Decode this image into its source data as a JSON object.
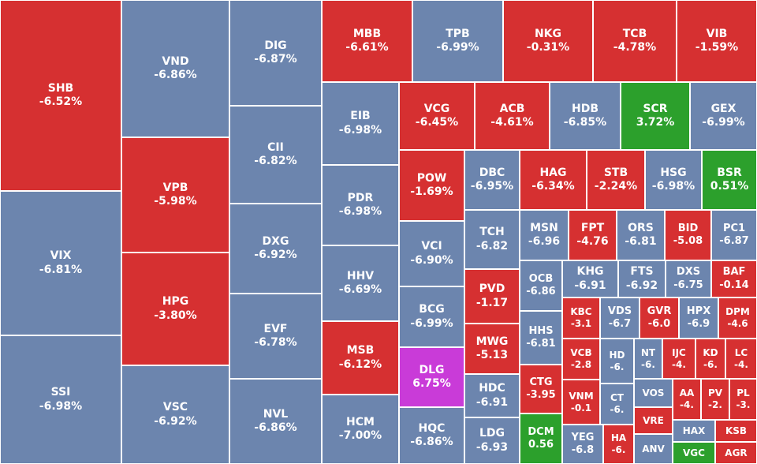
{
  "chart_data": {
    "type": "treemap",
    "colors": {
      "down": "#d63031",
      "floor": "#6c85ae",
      "up": "#2ca02c",
      "ceiling": "#c93bd8"
    },
    "items": [
      {
        "ticker": "SHB",
        "change": "-6.52%",
        "status": "down"
      },
      {
        "ticker": "VIX",
        "change": "-6.81%",
        "status": "floor"
      },
      {
        "ticker": "SSI",
        "change": "-6.98%",
        "status": "floor"
      },
      {
        "ticker": "VND",
        "change": "-6.86%",
        "status": "floor"
      },
      {
        "ticker": "VPB",
        "change": "-5.98%",
        "status": "down"
      },
      {
        "ticker": "HPG",
        "change": "-3.80%",
        "status": "down"
      },
      {
        "ticker": "VSC",
        "change": "-6.92%",
        "status": "floor"
      },
      {
        "ticker": "DIG",
        "change": "-6.87%",
        "status": "floor"
      },
      {
        "ticker": "CII",
        "change": "-6.82%",
        "status": "floor"
      },
      {
        "ticker": "DXG",
        "change": "-6.92%",
        "status": "floor"
      },
      {
        "ticker": "EVF",
        "change": "-6.78%",
        "status": "floor"
      },
      {
        "ticker": "NVL",
        "change": "-6.86%",
        "status": "floor"
      },
      {
        "ticker": "MBB",
        "change": "-6.61%",
        "status": "down"
      },
      {
        "ticker": "TPB",
        "change": "-6.99%",
        "status": "floor"
      },
      {
        "ticker": "NKG",
        "change": "-0.31%",
        "status": "down"
      },
      {
        "ticker": "TCB",
        "change": "-4.78%",
        "status": "down"
      },
      {
        "ticker": "VIB",
        "change": "-1.59%",
        "status": "down"
      },
      {
        "ticker": "EIB",
        "change": "-6.98%",
        "status": "floor"
      },
      {
        "ticker": "PDR",
        "change": "-6.98%",
        "status": "floor"
      },
      {
        "ticker": "HHV",
        "change": "-6.69%",
        "status": "floor"
      },
      {
        "ticker": "MSB",
        "change": "-6.12%",
        "status": "down"
      },
      {
        "ticker": "HCM",
        "change": "-7.00%",
        "status": "floor"
      },
      {
        "ticker": "VCG",
        "change": "-6.45%",
        "status": "down"
      },
      {
        "ticker": "ACB",
        "change": "-4.61%",
        "status": "down"
      },
      {
        "ticker": "HDB",
        "change": "-6.85%",
        "status": "floor"
      },
      {
        "ticker": "SCR",
        "change": "3.72%",
        "status": "up"
      },
      {
        "ticker": "GEX",
        "change": "-6.99%",
        "status": "floor"
      },
      {
        "ticker": "POW",
        "change": "-1.69%",
        "status": "down"
      },
      {
        "ticker": "DBC",
        "change": "-6.95%",
        "status": "floor"
      },
      {
        "ticker": "HAG",
        "change": "-6.34%",
        "status": "down"
      },
      {
        "ticker": "STB",
        "change": "-2.24%",
        "status": "down"
      },
      {
        "ticker": "HSG",
        "change": "-6.98%",
        "status": "floor"
      },
      {
        "ticker": "BSR",
        "change": "0.51%",
        "status": "up"
      },
      {
        "ticker": "VCI",
        "change": "-6.90%",
        "status": "floor"
      },
      {
        "ticker": "BCG",
        "change": "-6.99%",
        "status": "floor"
      },
      {
        "ticker": "DLG",
        "change": "6.75%",
        "status": "ceiling"
      },
      {
        "ticker": "HQC",
        "change": "-6.86%",
        "status": "floor"
      },
      {
        "ticker": "TCH",
        "change": "-6.82",
        "status": "floor"
      },
      {
        "ticker": "PVD",
        "change": "-1.17",
        "status": "down"
      },
      {
        "ticker": "MWG",
        "change": "-5.13",
        "status": "down"
      },
      {
        "ticker": "HDC",
        "change": "-6.91",
        "status": "floor"
      },
      {
        "ticker": "LDG",
        "change": "-6.93",
        "status": "floor"
      },
      {
        "ticker": "MSN",
        "change": "-6.96",
        "status": "floor"
      },
      {
        "ticker": "FPT",
        "change": "-4.76",
        "status": "down"
      },
      {
        "ticker": "ORS",
        "change": "-6.81",
        "status": "floor"
      },
      {
        "ticker": "BID",
        "change": "-5.08",
        "status": "down"
      },
      {
        "ticker": "PC1",
        "change": "-6.87",
        "status": "floor"
      },
      {
        "ticker": "OCB",
        "change": "-6.86",
        "status": "floor"
      },
      {
        "ticker": "KHG",
        "change": "-6.91",
        "status": "floor"
      },
      {
        "ticker": "FTS",
        "change": "-6.92",
        "status": "floor"
      },
      {
        "ticker": "DXS",
        "change": "-6.75",
        "status": "floor"
      },
      {
        "ticker": "BAF",
        "change": "-0.14",
        "status": "down"
      },
      {
        "ticker": "HHS",
        "change": "-6.81",
        "status": "floor"
      },
      {
        "ticker": "KBC",
        "change": "-3.1",
        "status": "down"
      },
      {
        "ticker": "VDS",
        "change": "-6.7",
        "status": "floor"
      },
      {
        "ticker": "GVR",
        "change": "-6.0",
        "status": "down"
      },
      {
        "ticker": "HPX",
        "change": "-6.9",
        "status": "floor"
      },
      {
        "ticker": "DPM",
        "change": "-4.6",
        "status": "down"
      },
      {
        "ticker": "CTG",
        "change": "-3.95",
        "status": "down"
      },
      {
        "ticker": "VCB",
        "change": "-2.8",
        "status": "down"
      },
      {
        "ticker": "HD",
        "change": "-6.",
        "status": "floor"
      },
      {
        "ticker": "NT",
        "change": "-6.",
        "status": "floor"
      },
      {
        "ticker": "IJC",
        "change": "-4.",
        "status": "down"
      },
      {
        "ticker": "KD",
        "change": "-6.",
        "status": "down"
      },
      {
        "ticker": "LC",
        "change": "-4.",
        "status": "down"
      },
      {
        "ticker": "DCM",
        "change": "0.56",
        "status": "up"
      },
      {
        "ticker": "VNM",
        "change": "-0.1",
        "status": "down"
      },
      {
        "ticker": "CT",
        "change": "-6.",
        "status": "floor"
      },
      {
        "ticker": "VOS",
        "change": "",
        "status": "floor"
      },
      {
        "ticker": "AA",
        "change": "-4.",
        "status": "down"
      },
      {
        "ticker": "PV",
        "change": "-2.",
        "status": "down"
      },
      {
        "ticker": "PL",
        "change": "-3.",
        "status": "down"
      },
      {
        "ticker": "YEG",
        "change": "-6.8",
        "status": "floor"
      },
      {
        "ticker": "HA",
        "change": "-6.",
        "status": "down"
      },
      {
        "ticker": "VRE",
        "change": "",
        "status": "down"
      },
      {
        "ticker": "ANV",
        "change": "",
        "status": "floor"
      },
      {
        "ticker": "HAX",
        "change": "",
        "status": "floor"
      },
      {
        "ticker": "KSB",
        "change": "",
        "status": "down"
      },
      {
        "ticker": "VGC",
        "change": "",
        "status": "up"
      },
      {
        "ticker": "AGR",
        "change": "",
        "status": "down"
      }
    ]
  }
}
